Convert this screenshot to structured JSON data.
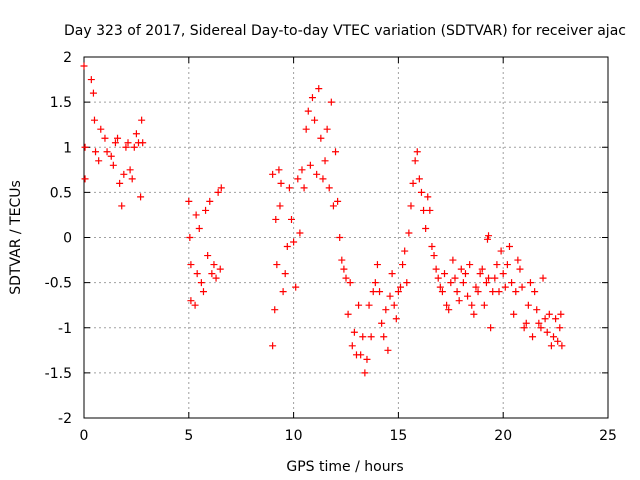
{
  "chart_data": {
    "type": "scatter",
    "title": "Day 323 of 2017, Sidereal Day-to-day VTEC variation (SDTVAR) for receiver ajac",
    "xlabel": "GPS time / hours",
    "ylabel": "SDTVAR / TECUs",
    "xlim": [
      0,
      25
    ],
    "ylim": [
      -2,
      2
    ],
    "x_ticks": [
      0,
      5,
      10,
      15,
      20,
      25
    ],
    "x_tick_labels": [
      "0",
      "5",
      "10",
      "15",
      "20",
      "25"
    ],
    "y_ticks": [
      -2,
      -1.5,
      -1,
      -0.5,
      0,
      0.5,
      1,
      1.5,
      2
    ],
    "y_tick_labels": [
      "-2",
      "-1.5",
      "-1",
      "-0.5",
      "0",
      "0.5",
      "1",
      "1.5",
      "2"
    ],
    "grid": true,
    "marker": "+",
    "marker_color": "#ff0000",
    "series": [
      {
        "name": "SDTVAR",
        "points": [
          [
            0.0,
            1.9
          ],
          [
            0.05,
            0.65
          ],
          [
            0.05,
            1.0
          ],
          [
            0.35,
            1.75
          ],
          [
            0.45,
            1.6
          ],
          [
            0.5,
            1.3
          ],
          [
            0.55,
            0.95
          ],
          [
            0.7,
            0.85
          ],
          [
            0.8,
            1.2
          ],
          [
            1.0,
            1.1
          ],
          [
            1.1,
            0.95
          ],
          [
            1.3,
            0.9
          ],
          [
            1.4,
            0.8
          ],
          [
            1.5,
            1.05
          ],
          [
            1.6,
            1.1
          ],
          [
            1.7,
            0.6
          ],
          [
            1.8,
            0.35
          ],
          [
            1.9,
            0.7
          ],
          [
            2.0,
            1.0
          ],
          [
            2.1,
            1.05
          ],
          [
            2.2,
            0.75
          ],
          [
            2.3,
            0.65
          ],
          [
            2.4,
            1.0
          ],
          [
            2.5,
            1.15
          ],
          [
            2.6,
            1.05
          ],
          [
            2.7,
            0.45
          ],
          [
            2.75,
            1.3
          ],
          [
            2.8,
            1.05
          ],
          [
            5.0,
            0.4
          ],
          [
            5.05,
            0.0
          ],
          [
            5.1,
            -0.3
          ],
          [
            5.1,
            -0.7
          ],
          [
            5.3,
            -0.75
          ],
          [
            5.35,
            0.25
          ],
          [
            5.4,
            -0.4
          ],
          [
            5.5,
            0.1
          ],
          [
            5.6,
            -0.5
          ],
          [
            5.7,
            -0.6
          ],
          [
            5.8,
            0.3
          ],
          [
            5.9,
            -0.2
          ],
          [
            6.0,
            0.4
          ],
          [
            6.1,
            -0.4
          ],
          [
            6.2,
            -0.3
          ],
          [
            6.3,
            -0.45
          ],
          [
            6.4,
            0.5
          ],
          [
            6.5,
            -0.35
          ],
          [
            6.55,
            0.55
          ],
          [
            9.0,
            0.7
          ],
          [
            9.0,
            -1.2
          ],
          [
            9.1,
            -0.8
          ],
          [
            9.15,
            0.2
          ],
          [
            9.2,
            -0.3
          ],
          [
            9.3,
            0.75
          ],
          [
            9.35,
            0.35
          ],
          [
            9.4,
            0.6
          ],
          [
            9.5,
            -0.6
          ],
          [
            9.6,
            -0.4
          ],
          [
            9.7,
            -0.1
          ],
          [
            9.8,
            0.55
          ],
          [
            9.9,
            0.2
          ],
          [
            10.0,
            -0.05
          ],
          [
            10.1,
            -0.55
          ],
          [
            10.2,
            0.65
          ],
          [
            10.3,
            0.05
          ],
          [
            10.4,
            0.75
          ],
          [
            10.5,
            0.55
          ],
          [
            10.6,
            1.2
          ],
          [
            10.7,
            1.4
          ],
          [
            10.8,
            0.8
          ],
          [
            10.9,
            1.55
          ],
          [
            11.0,
            1.3
          ],
          [
            11.1,
            0.7
          ],
          [
            11.2,
            1.65
          ],
          [
            11.3,
            1.1
          ],
          [
            11.4,
            0.65
          ],
          [
            11.5,
            0.85
          ],
          [
            11.6,
            1.2
          ],
          [
            11.7,
            0.55
          ],
          [
            11.8,
            1.5
          ],
          [
            11.9,
            0.35
          ],
          [
            12.0,
            0.95
          ],
          [
            12.1,
            0.4
          ],
          [
            12.2,
            0.0
          ],
          [
            12.3,
            -0.25
          ],
          [
            12.4,
            -0.35
          ],
          [
            12.5,
            -0.45
          ],
          [
            12.6,
            -0.85
          ],
          [
            12.7,
            -0.5
          ],
          [
            12.8,
            -1.2
          ],
          [
            12.9,
            -1.05
          ],
          [
            13.0,
            -1.3
          ],
          [
            13.1,
            -0.75
          ],
          [
            13.2,
            -1.3
          ],
          [
            13.3,
            -1.1
          ],
          [
            13.4,
            -1.5
          ],
          [
            13.5,
            -1.35
          ],
          [
            13.6,
            -0.75
          ],
          [
            13.7,
            -1.1
          ],
          [
            13.8,
            -0.6
          ],
          [
            13.9,
            -0.5
          ],
          [
            14.0,
            -0.3
          ],
          [
            14.1,
            -0.6
          ],
          [
            14.2,
            -0.95
          ],
          [
            14.3,
            -1.1
          ],
          [
            14.4,
            -0.8
          ],
          [
            14.5,
            -1.25
          ],
          [
            14.6,
            -0.65
          ],
          [
            14.7,
            -0.4
          ],
          [
            14.8,
            -0.75
          ],
          [
            14.9,
            -0.9
          ],
          [
            15.0,
            -0.6
          ],
          [
            15.1,
            -0.55
          ],
          [
            15.2,
            -0.3
          ],
          [
            15.3,
            -0.15
          ],
          [
            15.4,
            -0.5
          ],
          [
            15.5,
            0.05
          ],
          [
            15.6,
            0.35
          ],
          [
            15.7,
            0.6
          ],
          [
            15.8,
            0.85
          ],
          [
            15.9,
            0.95
          ],
          [
            16.0,
            0.65
          ],
          [
            16.1,
            0.5
          ],
          [
            16.2,
            0.3
          ],
          [
            16.3,
            0.1
          ],
          [
            16.4,
            0.45
          ],
          [
            16.5,
            0.3
          ],
          [
            16.6,
            -0.1
          ],
          [
            16.7,
            -0.2
          ],
          [
            16.8,
            -0.35
          ],
          [
            16.9,
            -0.45
          ],
          [
            17.0,
            -0.55
          ],
          [
            17.1,
            -0.6
          ],
          [
            17.2,
            -0.4
          ],
          [
            17.3,
            -0.75
          ],
          [
            17.4,
            -0.8
          ],
          [
            17.5,
            -0.5
          ],
          [
            17.6,
            -0.25
          ],
          [
            17.7,
            -0.45
          ],
          [
            17.8,
            -0.6
          ],
          [
            17.9,
            -0.7
          ],
          [
            18.0,
            -0.35
          ],
          [
            18.1,
            -0.5
          ],
          [
            18.2,
            -0.4
          ],
          [
            18.3,
            -0.65
          ],
          [
            18.4,
            -0.3
          ],
          [
            18.5,
            -0.75
          ],
          [
            18.6,
            -0.85
          ],
          [
            18.7,
            -0.55
          ],
          [
            18.8,
            -0.6
          ],
          [
            18.9,
            -0.4
          ],
          [
            19.0,
            -0.35
          ],
          [
            19.1,
            -0.75
          ],
          [
            19.2,
            -0.5
          ],
          [
            19.3,
            -0.45
          ],
          [
            19.4,
            -1.0
          ],
          [
            19.5,
            -0.6
          ],
          [
            19.6,
            -0.45
          ],
          [
            19.7,
            -0.3
          ],
          [
            19.8,
            -0.6
          ],
          [
            19.9,
            -0.15
          ],
          [
            20.0,
            -0.4
          ],
          [
            20.1,
            -0.55
          ],
          [
            20.2,
            -0.3
          ],
          [
            20.3,
            -0.1
          ],
          [
            20.4,
            -0.5
          ],
          [
            20.5,
            -0.85
          ],
          [
            20.6,
            -0.6
          ],
          [
            20.7,
            -0.25
          ],
          [
            20.8,
            -0.35
          ],
          [
            20.9,
            -0.55
          ],
          [
            21.0,
            -1.0
          ],
          [
            21.1,
            -0.95
          ],
          [
            21.2,
            -0.75
          ],
          [
            21.3,
            -0.5
          ],
          [
            21.4,
            -1.1
          ],
          [
            21.5,
            -0.6
          ],
          [
            21.6,
            -0.8
          ],
          [
            21.7,
            -0.95
          ],
          [
            21.8,
            -1.0
          ],
          [
            21.9,
            -0.45
          ],
          [
            22.0,
            -0.9
          ],
          [
            22.1,
            -1.05
          ],
          [
            22.2,
            -0.85
          ],
          [
            22.3,
            -1.2
          ],
          [
            22.4,
            -1.1
          ],
          [
            22.5,
            -0.9
          ],
          [
            22.6,
            -1.15
          ],
          [
            22.7,
            -1.0
          ],
          [
            22.75,
            -0.85
          ],
          [
            22.8,
            -1.2
          ],
          [
            19.3,
            0.02
          ],
          [
            19.25,
            -0.02
          ]
        ]
      }
    ]
  }
}
